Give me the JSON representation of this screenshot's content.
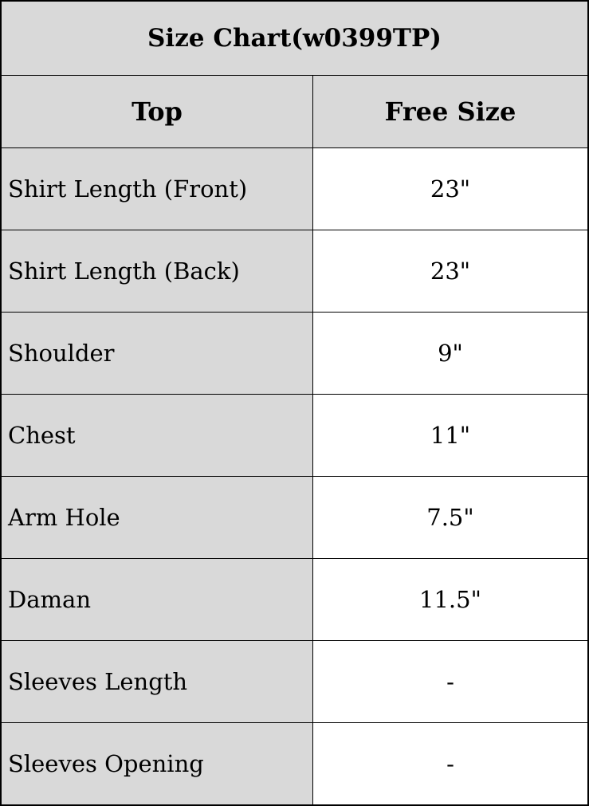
{
  "title": "Size Chart(w0399TP)",
  "headers": [
    "Top",
    "Free Size"
  ],
  "rows": [
    {
      "label": "Shirt Length (Front)",
      "value": "23\""
    },
    {
      "label": "Shirt Length (Back)",
      "value": "23\""
    },
    {
      "label": "Shoulder",
      "value": "9\""
    },
    {
      "label": "Chest",
      "value": "11\""
    },
    {
      "label": "Arm Hole",
      "value": "7.5\""
    },
    {
      "label": "Daman",
      "value": "11.5\""
    },
    {
      "label": "Sleeves Length",
      "value": "-"
    },
    {
      "label": "Sleeves Opening",
      "value": "-"
    }
  ]
}
